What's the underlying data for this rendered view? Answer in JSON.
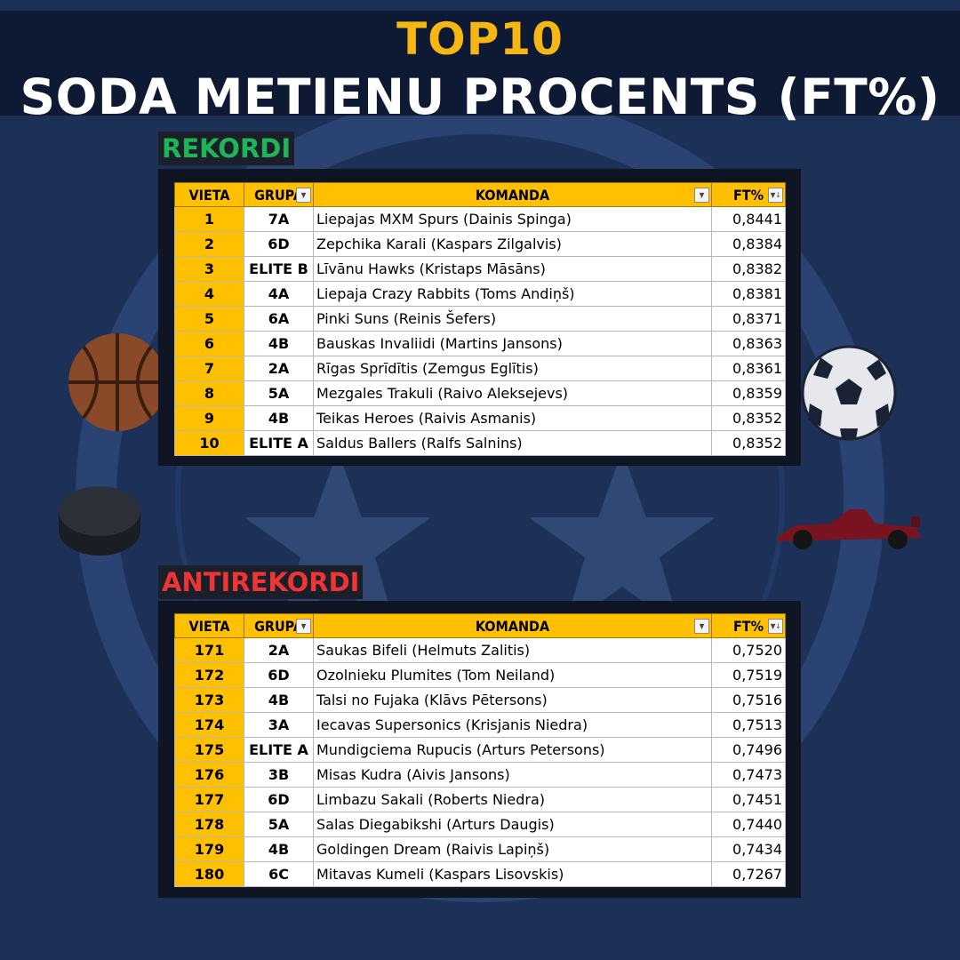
{
  "header": {
    "title_top": "TOP10",
    "title_main": "SODA METIENU PROCENTS (FT%)"
  },
  "columns": {
    "rank": "VIETA",
    "group": "GRUPA",
    "team": "KOMANDA",
    "ft": "FT%"
  },
  "colors": {
    "accent_yellow": "#f6b614",
    "record_green": "#1fb457",
    "antirecord_red": "#ee3535",
    "header_fill": "#ffc000",
    "background": "#1c3058"
  },
  "icons": [
    "basketball-icon",
    "soccer-ball-icon",
    "hockey-puck-icon",
    "race-car-icon",
    "star-icon"
  ],
  "records": {
    "label": "REKORDI",
    "rows": [
      {
        "rank": "1",
        "group": "7A",
        "team": "Liepajas MXM Spurs  (Dainis Spinga)",
        "ft": "0,8441"
      },
      {
        "rank": "2",
        "group": "6D",
        "team": "Zepchika Karali  (Kaspars Zilgalvis)",
        "ft": "0,8384"
      },
      {
        "rank": "3",
        "group": "ELITE B",
        "team": "Līvānu Hawks  (Kristaps Māsāns)",
        "ft": "0,8382"
      },
      {
        "rank": "4",
        "group": "4A",
        "team": "Liepaja Crazy Rabbits  (Toms Andiņš)",
        "ft": "0,8381"
      },
      {
        "rank": "5",
        "group": "6A",
        "team": "Pinki Suns  (Reinis Šefers)",
        "ft": "0,8371"
      },
      {
        "rank": "6",
        "group": "4B",
        "team": "Bauskas Invaliidi  (Martins Jansons)",
        "ft": "0,8363"
      },
      {
        "rank": "7",
        "group": "2A",
        "team": "Rīgas Sprīdītis  (Zemgus Eglītis)",
        "ft": "0,8361"
      },
      {
        "rank": "8",
        "group": "5A",
        "team": "Mezgales Trakuli  (Raivo Aleksejevs)",
        "ft": "0,8359"
      },
      {
        "rank": "9",
        "group": "4B",
        "team": "Teikas Heroes  (Raivis Asmanis)",
        "ft": "0,8352"
      },
      {
        "rank": "10",
        "group": "ELITE A",
        "team": "Saldus Ballers  (Ralfs Salnins)",
        "ft": "0,8352"
      }
    ]
  },
  "antirecords": {
    "label": "ANTIREKORDI",
    "rows": [
      {
        "rank": "171",
        "group": "2A",
        "team": "Saukas Bifeli  (Helmuts Zalitis)",
        "ft": "0,7520"
      },
      {
        "rank": "172",
        "group": "6D",
        "team": "Ozolnieku Plumites  (Tom Neiland)",
        "ft": "0,7519"
      },
      {
        "rank": "173",
        "group": "4B",
        "team": "Talsi no Fujaka  (Klāvs Pētersons)",
        "ft": "0,7516"
      },
      {
        "rank": "174",
        "group": "3A",
        "team": "Iecavas Supersonics  (Krisjanis Niedra)",
        "ft": "0,7513"
      },
      {
        "rank": "175",
        "group": "ELITE A",
        "team": "Mundigciema Rupucis  (Arturs Petersons)",
        "ft": "0,7496"
      },
      {
        "rank": "176",
        "group": "3B",
        "team": "Misas Kudra  (Aivis Jansons)",
        "ft": "0,7473"
      },
      {
        "rank": "177",
        "group": "6D",
        "team": "Limbazu Sakali  (Roberts Niedra)",
        "ft": "0,7451"
      },
      {
        "rank": "178",
        "group": "5A",
        "team": "Salas Diegabikshi  (Arturs Daugis)",
        "ft": "0,7440"
      },
      {
        "rank": "179",
        "group": "4B",
        "team": "Goldingen Dream  (Raivis Lapiņš)",
        "ft": "0,7434"
      },
      {
        "rank": "180",
        "group": "6C",
        "team": "Mitavas Kumeli  (Kaspars Lisovskis)",
        "ft": "0,7267"
      }
    ]
  }
}
